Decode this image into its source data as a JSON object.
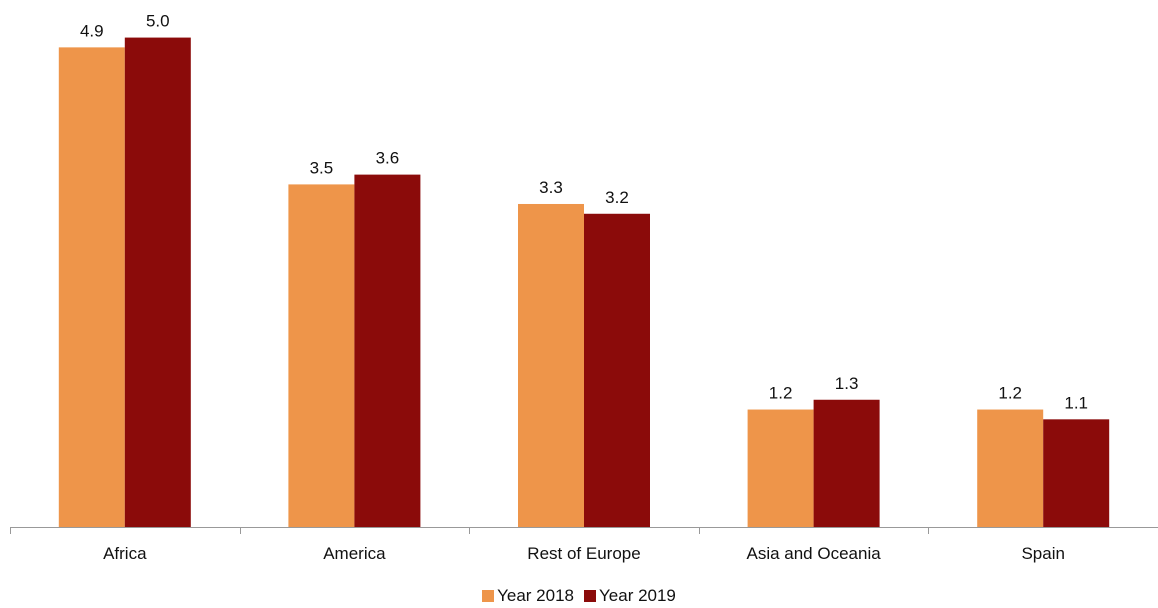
{
  "chart_data": {
    "type": "bar",
    "title": "",
    "xlabel": "",
    "ylabel": "",
    "ylim": [
      0,
      5.2
    ],
    "grid": false,
    "legend_position": "bottom",
    "categories": [
      "Africa",
      "America",
      "Rest of Europe",
      "Asia and Oceania",
      "Spain"
    ],
    "series": [
      {
        "name": "Year 2018",
        "color": "#EE954A",
        "values": [
          4.9,
          3.5,
          3.3,
          1.2,
          1.2
        ],
        "labels": [
          "4.9",
          "3.5",
          "3.3",
          "1.2",
          "1.2"
        ]
      },
      {
        "name": "Year 2019",
        "color": "#8B0B0A",
        "values": [
          5.0,
          3.6,
          3.2,
          1.3,
          1.1
        ],
        "labels": [
          "5.0",
          "3.6",
          "3.2",
          "1.3",
          "1.1"
        ]
      }
    ]
  }
}
